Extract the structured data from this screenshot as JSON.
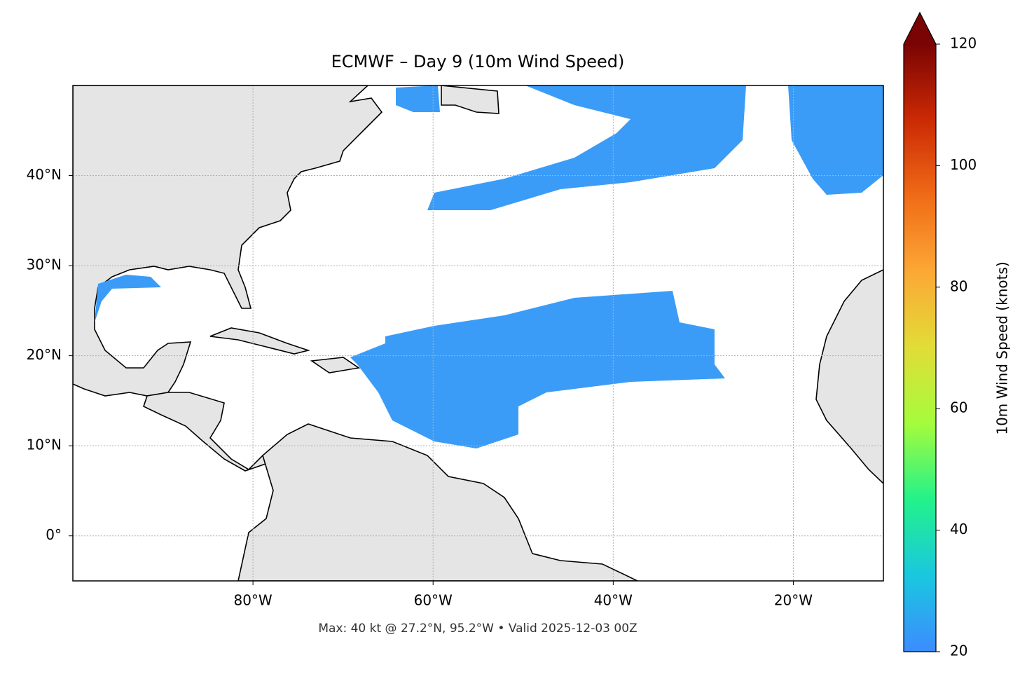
{
  "chart_data": {
    "type": "map",
    "title": "ECMWF – Day 9 (10m Wind Speed)",
    "footer": "Max: 40 kt @ 27.2°N, 95.2°W • Valid 2025-12-03 00Z",
    "xlim": [
      -100,
      -10
    ],
    "ylim": [
      -5,
      50
    ],
    "xticks": [
      {
        "value": -80,
        "label": "80°W"
      },
      {
        "value": -60,
        "label": "60°W"
      },
      {
        "value": -40,
        "label": "40°W"
      },
      {
        "value": -20,
        "label": "20°W"
      }
    ],
    "yticks": [
      {
        "value": 0,
        "label": "0°"
      },
      {
        "value": 10,
        "label": "10°N"
      },
      {
        "value": 20,
        "label": "20°N"
      },
      {
        "value": 30,
        "label": "30°N"
      },
      {
        "value": 40,
        "label": "40°N"
      }
    ],
    "grid": true,
    "colorbar": {
      "label": "10m Wind Speed (knots)",
      "lim": [
        20,
        120
      ],
      "ticks": [
        20,
        40,
        60,
        80,
        100,
        120
      ],
      "extend": "max",
      "colors": [
        "#3c8cff",
        "#1ac7e0",
        "#22f28a",
        "#a4fc3c",
        "#e1dd37",
        "#fca835",
        "#f06b17",
        "#cb2a04",
        "#7a0403"
      ]
    }
  }
}
